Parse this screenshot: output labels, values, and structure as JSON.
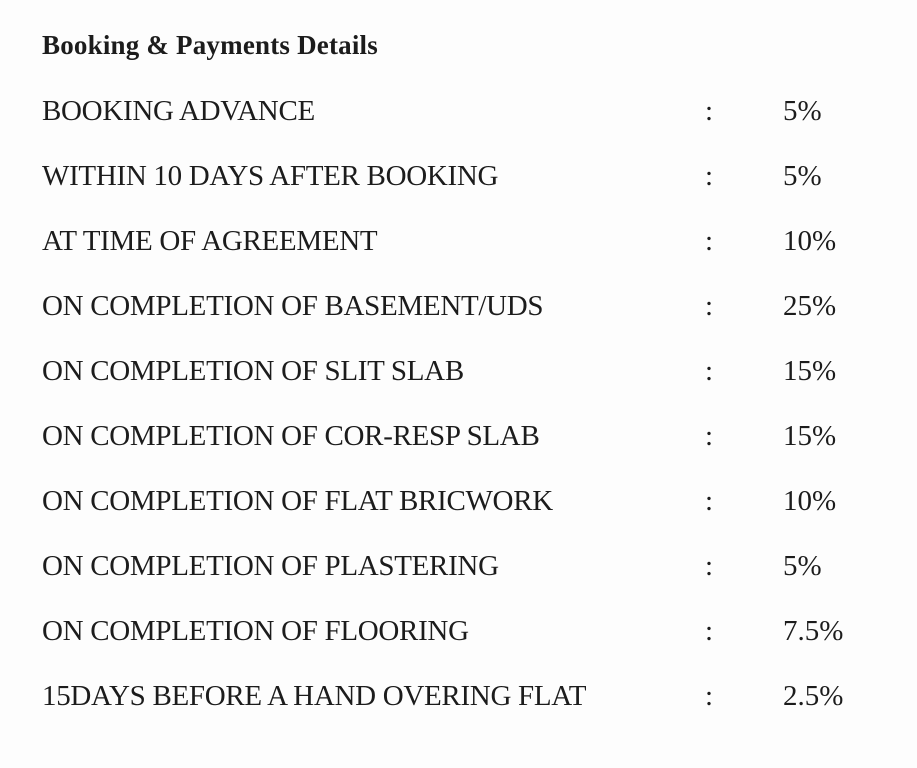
{
  "document": {
    "title": "Booking & Payments Details",
    "separator": ":",
    "rows": [
      {
        "label": "BOOKING ADVANCE",
        "value": "5%"
      },
      {
        "label": "WITHIN 10 DAYS AFTER BOOKING",
        "value": "5%"
      },
      {
        "label": "AT TIME OF AGREEMENT",
        "value": "10%"
      },
      {
        "label": "ON COMPLETION OF BASEMENT/UDS",
        "value": "25%"
      },
      {
        "label": "ON COMPLETION OF SLIT SLAB",
        "value": "15%"
      },
      {
        "label": "ON COMPLETION OF COR-RESP SLAB",
        "value": "15%"
      },
      {
        "label": "ON COMPLETION OF FLAT BRICWORK",
        "value": "10%"
      },
      {
        "label": "ON COMPLETION OF PLASTERING",
        "value": "5%"
      },
      {
        "label": "ON COMPLETION OF FLOORING",
        "value": "7.5%"
      },
      {
        "label": "15DAYS BEFORE A HAND OVERING FLAT",
        "value": "2.5%"
      }
    ],
    "colors": {
      "background": "#fdfdfd",
      "text": "#1c1c1c"
    }
  }
}
